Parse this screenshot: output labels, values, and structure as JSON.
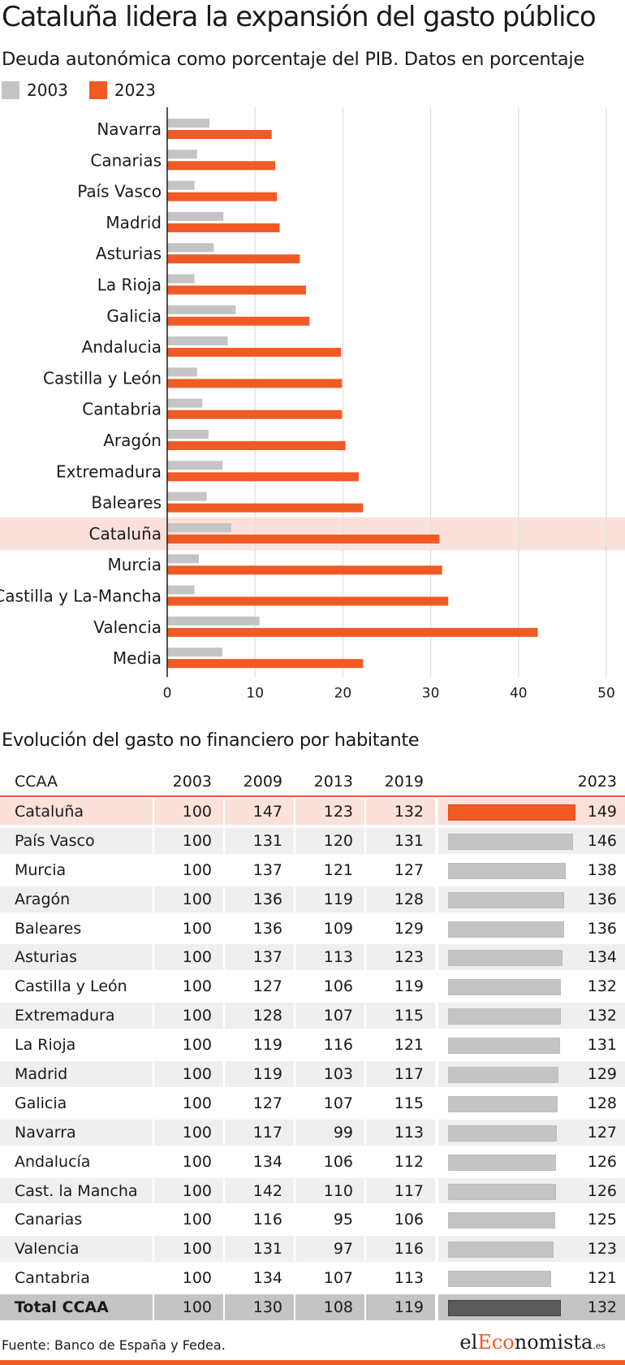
{
  "title": "Cataluña lidera la expansión del gasto público",
  "chart_data": {
    "type": "bar",
    "orientation": "horizontal",
    "subtitle": "Deuda autonómica como porcentaje del PIB. Datos en porcentaje",
    "categories": [
      "Navarra",
      "Canarias",
      "País Vasco",
      "Madrid",
      "Asturias",
      "La Rioja",
      "Galicia",
      "Andalucia",
      "Castilla y León",
      "Cantabria",
      "Aragón",
      "Extremadura",
      "Baleares",
      "Cataluña",
      "Murcia",
      "Castilla y La-Mancha",
      "Valencia",
      "Media"
    ],
    "series": [
      {
        "name": "2003",
        "color": "#c4c4c4",
        "values": [
          4.8,
          3.4,
          3.1,
          6.4,
          5.3,
          3.1,
          7.8,
          6.9,
          3.4,
          4.0,
          4.7,
          6.3,
          4.5,
          7.3,
          3.6,
          3.1,
          10.5,
          6.3
        ]
      },
      {
        "name": "2023",
        "color": "#f05a25",
        "values": [
          11.9,
          12.3,
          12.5,
          12.8,
          15.1,
          15.8,
          16.2,
          19.8,
          19.9,
          19.9,
          20.3,
          21.8,
          22.3,
          31.0,
          31.3,
          32.0,
          42.2,
          22.3
        ]
      }
    ],
    "highlight": "Cataluña",
    "highlight_color": "#fbe1da",
    "xlim": [
      0,
      50
    ],
    "xticks": [
      "0",
      "10",
      "20",
      "30",
      "40",
      "50"
    ],
    "grid": true,
    "legend_position": "top-left"
  },
  "table": {
    "subtitle": "Evolución del gasto no financiero por habitante",
    "columns": [
      "CCAA",
      "2003",
      "2009",
      "2013",
      "2019",
      "2023"
    ],
    "bar_max": 150,
    "rows": [
      {
        "name": "Cataluña",
        "values": [
          "100",
          "147",
          "123",
          "132"
        ],
        "v2023": 149,
        "label2023": "149",
        "highlight": true
      },
      {
        "name": "País Vasco",
        "values": [
          "100",
          "131",
          "120",
          "131"
        ],
        "v2023": 146,
        "label2023": "146"
      },
      {
        "name": "Murcia",
        "values": [
          "100",
          "137",
          "121",
          "127"
        ],
        "v2023": 138,
        "label2023": "138"
      },
      {
        "name": "Aragón",
        "values": [
          "100",
          "136",
          "119",
          "128"
        ],
        "v2023": 136,
        "label2023": "136"
      },
      {
        "name": "Baleares",
        "values": [
          "100",
          "136",
          "109",
          "129"
        ],
        "v2023": 136,
        "label2023": "136"
      },
      {
        "name": "Asturias",
        "values": [
          "100",
          "137",
          "113",
          "123"
        ],
        "v2023": 134,
        "label2023": "134"
      },
      {
        "name": "Castilla y León",
        "values": [
          "100",
          "127",
          "106",
          "119"
        ],
        "v2023": 132,
        "label2023": "132"
      },
      {
        "name": "Extremadura",
        "values": [
          "100",
          "128",
          "107",
          "115"
        ],
        "v2023": 132,
        "label2023": "132"
      },
      {
        "name": "La Rioja",
        "values": [
          "100",
          "119",
          "116",
          "121"
        ],
        "v2023": 131,
        "label2023": "131"
      },
      {
        "name": "Madrid",
        "values": [
          "100",
          "119",
          "103",
          "117"
        ],
        "v2023": 129,
        "label2023": "129"
      },
      {
        "name": "Galicia",
        "values": [
          "100",
          "127",
          "107",
          "115"
        ],
        "v2023": 128,
        "label2023": "128"
      },
      {
        "name": "Navarra",
        "values": [
          "100",
          "117",
          "99",
          "113"
        ],
        "v2023": 127,
        "label2023": "127"
      },
      {
        "name": "Andalucía",
        "values": [
          "100",
          "134",
          "106",
          "112"
        ],
        "v2023": 126,
        "label2023": "126"
      },
      {
        "name": "Cast. la Mancha",
        "values": [
          "100",
          "142",
          "110",
          "117"
        ],
        "v2023": 126,
        "label2023": "126"
      },
      {
        "name": "Canarias",
        "values": [
          "100",
          "116",
          "95",
          "106"
        ],
        "v2023": 125,
        "label2023": "125"
      },
      {
        "name": "Valencia",
        "values": [
          "100",
          "131",
          "97",
          "116"
        ],
        "v2023": 123,
        "label2023": "123"
      },
      {
        "name": "Cantabria",
        "values": [
          "100",
          "134",
          "107",
          "113"
        ],
        "v2023": 121,
        "label2023": "121"
      },
      {
        "name": "Total CCAA",
        "values": [
          "100",
          "130",
          "108",
          "119"
        ],
        "v2023": 132,
        "label2023": "132",
        "total": true
      }
    ]
  },
  "footer": {
    "source": "Fuente: Banco de España y Fedea.",
    "brand_prefix": "el",
    "brand_accent": "Eco",
    "brand_suffix": "nomista",
    "brand_tld": ".es"
  }
}
